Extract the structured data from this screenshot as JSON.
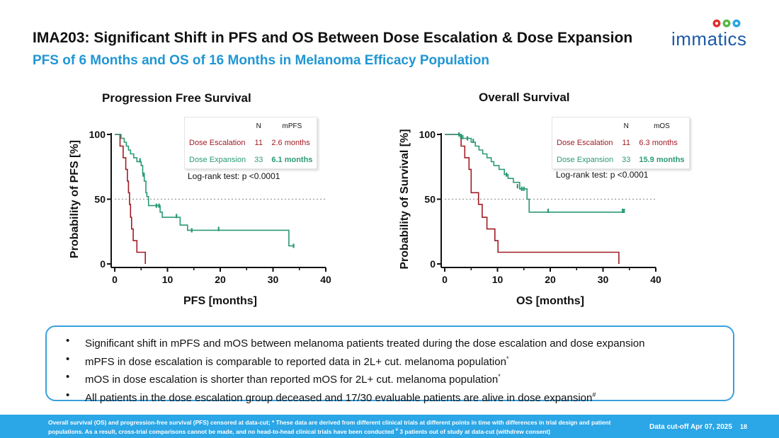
{
  "header": {
    "title": "IMA203: Significant Shift in PFS and OS Between Dose Escalation & Dose Expansion",
    "subtitle": "PFS of 6 Months and OS of 16 Months in Melanoma Efficacy Population",
    "logo_text": "immatics"
  },
  "colors": {
    "accent": "#2196d3",
    "escalation": "#a01c24",
    "expansion": "#2a9a72",
    "footer": "#2ba6e6"
  },
  "chart_data": [
    {
      "type": "line",
      "title": "Progression Free Survival",
      "xlabel": "PFS [months]",
      "ylabel": "Probability of PFS [%]",
      "xlim": [
        0,
        40
      ],
      "ylim": [
        0,
        100
      ],
      "xticks": [
        0,
        10,
        20,
        30,
        40
      ],
      "yticks": [
        0,
        50,
        100
      ],
      "reference_line": 50,
      "legend": {
        "headers": [
          "N",
          "mPFS"
        ],
        "rows": [
          {
            "name": "Dose Escalation",
            "n": "11",
            "median": "2.6 months"
          },
          {
            "name": "Dose Expansion",
            "n": "33",
            "median": "6.1 months"
          }
        ]
      },
      "annotation": "Log-rank test: p <0.0001",
      "series": [
        {
          "name": "Dose Escalation",
          "step": [
            [
              0,
              100
            ],
            [
              1,
              100
            ],
            [
              1,
              91
            ],
            [
              1.6,
              91
            ],
            [
              1.6,
              82
            ],
            [
              2.1,
              82
            ],
            [
              2.1,
              73
            ],
            [
              2.4,
              73
            ],
            [
              2.4,
              64
            ],
            [
              2.6,
              64
            ],
            [
              2.6,
              55
            ],
            [
              2.8,
              55
            ],
            [
              2.8,
              46
            ],
            [
              3.0,
              46
            ],
            [
              3.0,
              36
            ],
            [
              3.2,
              36
            ],
            [
              3.2,
              27
            ],
            [
              3.5,
              27
            ],
            [
              3.5,
              18
            ],
            [
              4.2,
              18
            ],
            [
              4.2,
              9
            ],
            [
              5.8,
              9
            ],
            [
              5.8,
              0
            ]
          ],
          "censored": []
        },
        {
          "name": "Dose Expansion",
          "step": [
            [
              0,
              100
            ],
            [
              1.2,
              100
            ],
            [
              1.2,
              97
            ],
            [
              1.8,
              97
            ],
            [
              1.8,
              94
            ],
            [
              2.2,
              94
            ],
            [
              2.2,
              91
            ],
            [
              2.6,
              91
            ],
            [
              2.6,
              88
            ],
            [
              3.0,
              88
            ],
            [
              3.0,
              85
            ],
            [
              3.6,
              85
            ],
            [
              3.6,
              82
            ],
            [
              4.2,
              82
            ],
            [
              4.2,
              79
            ],
            [
              5.0,
              79
            ],
            [
              5.0,
              76
            ],
            [
              5.3,
              76
            ],
            [
              5.3,
              70
            ],
            [
              5.6,
              70
            ],
            [
              5.6,
              64
            ],
            [
              5.9,
              64
            ],
            [
              5.9,
              55
            ],
            [
              6.1,
              55
            ],
            [
              6.1,
              52
            ],
            [
              6.4,
              52
            ],
            [
              6.4,
              45
            ],
            [
              8.6,
              45
            ],
            [
              8.6,
              40
            ],
            [
              9.0,
              40
            ],
            [
              9.0,
              36
            ],
            [
              12.4,
              36
            ],
            [
              12.4,
              30
            ],
            [
              13.8,
              30
            ],
            [
              13.8,
              26
            ],
            [
              33.0,
              26
            ],
            [
              33.0,
              14
            ],
            [
              34.0,
              14
            ]
          ],
          "censored": [
            [
              4.8,
              80
            ],
            [
              5.4,
              69
            ],
            [
              7.9,
              45
            ],
            [
              8.4,
              45
            ],
            [
              11.7,
              37
            ],
            [
              14.6,
              26
            ],
            [
              19.7,
              27
            ],
            [
              33.9,
              14
            ]
          ]
        }
      ]
    },
    {
      "type": "line",
      "title": "Overall Survival",
      "xlabel": "OS [months]",
      "ylabel": "Probability of Survival [%]",
      "xlim": [
        0,
        40
      ],
      "ylim": [
        0,
        100
      ],
      "xticks": [
        0,
        10,
        20,
        30,
        40
      ],
      "yticks": [
        0,
        50,
        100
      ],
      "reference_line": 50,
      "legend": {
        "headers": [
          "N",
          "mOS"
        ],
        "rows": [
          {
            "name": "Dose Escalation",
            "n": "11",
            "median": "6.3 months"
          },
          {
            "name": "Dose Expansion",
            "n": "33",
            "median": "15.9 months"
          }
        ]
      },
      "annotation": "Log-rank test: p <0.0001",
      "series": [
        {
          "name": "Dose Escalation",
          "step": [
            [
              0,
              100
            ],
            [
              3.1,
              100
            ],
            [
              3.1,
              91
            ],
            [
              3.8,
              91
            ],
            [
              3.8,
              82
            ],
            [
              4.6,
              82
            ],
            [
              4.6,
              73
            ],
            [
              5.0,
              73
            ],
            [
              5.0,
              55
            ],
            [
              6.4,
              55
            ],
            [
              6.4,
              46
            ],
            [
              7.1,
              46
            ],
            [
              7.1,
              36
            ],
            [
              8.0,
              36
            ],
            [
              8.0,
              27
            ],
            [
              9.5,
              27
            ],
            [
              9.5,
              18
            ],
            [
              10.1,
              18
            ],
            [
              10.1,
              9
            ],
            [
              33.0,
              9
            ],
            [
              33.0,
              0
            ]
          ],
          "censored": []
        },
        {
          "name": "Dose Expansion",
          "step": [
            [
              0,
              100
            ],
            [
              3.0,
              100
            ],
            [
              3.0,
              97
            ],
            [
              5.0,
              97
            ],
            [
              5.0,
              94
            ],
            [
              5.8,
              94
            ],
            [
              5.8,
              91
            ],
            [
              6.5,
              91
            ],
            [
              6.5,
              88
            ],
            [
              7.2,
              88
            ],
            [
              7.2,
              85
            ],
            [
              8.0,
              85
            ],
            [
              8.0,
              82
            ],
            [
              8.8,
              82
            ],
            [
              8.8,
              79
            ],
            [
              9.3,
              79
            ],
            [
              9.3,
              76
            ],
            [
              10.3,
              76
            ],
            [
              10.3,
              73
            ],
            [
              11.3,
              73
            ],
            [
              11.3,
              69
            ],
            [
              12.0,
              69
            ],
            [
              12.0,
              66
            ],
            [
              13.0,
              66
            ],
            [
              13.0,
              63
            ],
            [
              14.2,
              63
            ],
            [
              14.2,
              58
            ],
            [
              15.6,
              58
            ],
            [
              15.6,
              50
            ],
            [
              16.0,
              50
            ],
            [
              16.0,
              40
            ],
            [
              34.0,
              40
            ]
          ],
          "censored": [
            [
              2.7,
              100
            ],
            [
              3.4,
              98
            ],
            [
              4.3,
              97
            ],
            [
              5.4,
              95
            ],
            [
              11.7,
              69
            ],
            [
              13.8,
              60
            ],
            [
              14.6,
              58
            ],
            [
              15.0,
              58
            ],
            [
              19.6,
              41
            ],
            [
              33.7,
              41
            ],
            [
              34.0,
              41
            ]
          ]
        }
      ]
    }
  ],
  "bullets": [
    {
      "text": "Significant shift in mPFS and mOS between melanoma patients treated during the dose escalation and dose expansion",
      "sup": ""
    },
    {
      "text": "mPFS in dose escalation is comparable to reported data in 2L+ cut. melanoma population",
      "sup": "*"
    },
    {
      "text": "mOS in dose escalation is shorter than reported mOS for 2L+ cut. melanoma population",
      "sup": "*"
    },
    {
      "text": "All patients in the dose escalation group deceased and 17/30 evaluable patients are alive in dose expansion",
      "sup": "#"
    }
  ],
  "footer": {
    "note_part1": "Overall survival (OS) and progression-free survival (PFS) censored at data-cut; * These data are derived from different clinical trials at different points in time with differences in trial design and patient populations. As a result, cross-trial comparisons cannot be made, and no head-to-head clinical trials have been conducted",
    "note_sup": "#",
    "note_part2": " 3 patients out of study at data-cut (withdrew consent)",
    "cutoff": "Data cut-off Apr 07, 2025",
    "page": "18"
  }
}
